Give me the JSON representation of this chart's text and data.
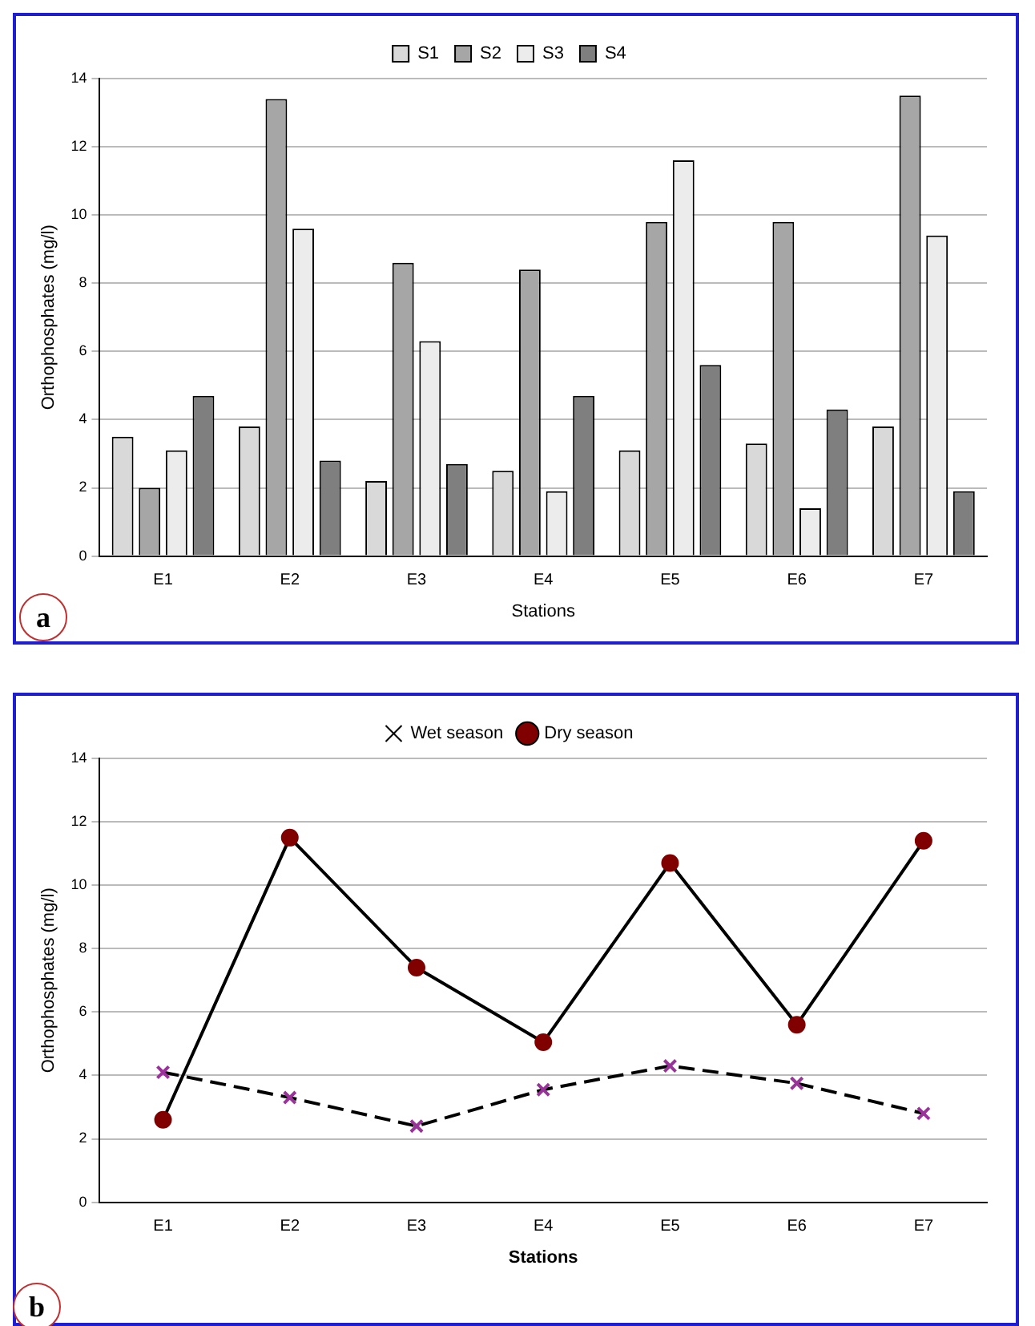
{
  "chart_data": [
    {
      "type": "bar",
      "xlabel": "Stations",
      "ylabel": "Orthophosphates (mg/l)",
      "categories": [
        "E1",
        "E2",
        "E3",
        "E4",
        "E5",
        "E6",
        "E7"
      ],
      "series": [
        {
          "name": "S1",
          "color": "#d9d9d9",
          "values": [
            3.5,
            3.8,
            2.2,
            2.5,
            3.1,
            3.3,
            3.8
          ]
        },
        {
          "name": "S2",
          "color": "#a6a6a6",
          "values": [
            2.0,
            13.4,
            8.6,
            8.4,
            9.8,
            9.8,
            13.5
          ]
        },
        {
          "name": "S3",
          "color": "#ececec",
          "values": [
            3.1,
            9.6,
            6.3,
            1.9,
            11.6,
            1.4,
            9.4
          ]
        },
        {
          "name": "S4",
          "color": "#7f7f7f",
          "values": [
            4.7,
            2.8,
            2.7,
            4.7,
            5.6,
            4.3,
            1.9
          ]
        }
      ],
      "ylim": [
        0,
        14
      ],
      "yticks": [
        0,
        2,
        4,
        6,
        8,
        10,
        12,
        14
      ],
      "grid": "y",
      "legend": "top",
      "annotations": [
        "a"
      ]
    },
    {
      "type": "line",
      "xlabel": "Stations",
      "ylabel": "Orthophosphates (mg/l)",
      "categories": [
        "E1",
        "E2",
        "E3",
        "E4",
        "E5",
        "E6",
        "E7"
      ],
      "series": [
        {
          "name": "Wet season",
          "color": "#993399",
          "marker": "cross",
          "line_style": "dashed",
          "values": [
            4.1,
            3.3,
            2.4,
            3.55,
            4.3,
            3.75,
            2.8
          ]
        },
        {
          "name": "Dry season",
          "color": "#800000",
          "marker": "circle",
          "line_style": "solid",
          "values": [
            2.6,
            11.5,
            7.4,
            5.05,
            10.7,
            5.6,
            11.4
          ]
        }
      ],
      "ylim": [
        0,
        14
      ],
      "yticks": [
        0,
        2,
        4,
        6,
        8,
        10,
        12,
        14
      ],
      "grid": "y",
      "legend": "top",
      "annotations": [
        "b"
      ]
    }
  ]
}
